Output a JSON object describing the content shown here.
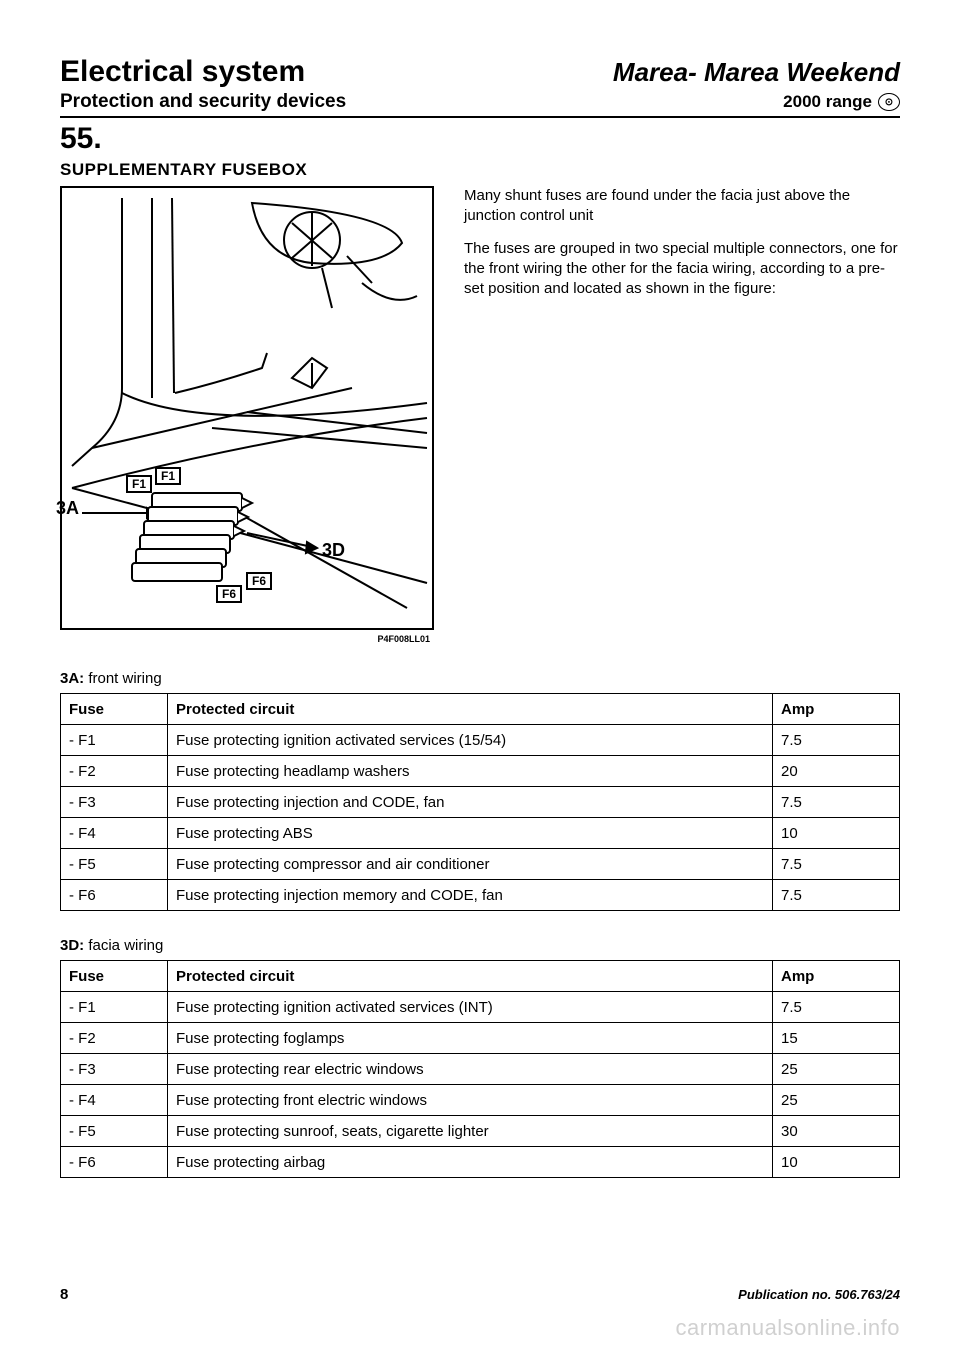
{
  "header": {
    "title_left": "Electrical system",
    "title_right": "Marea- Marea Weekend",
    "sub_left": "Protection and security devices",
    "sub_right": "2000 range"
  },
  "section": {
    "number": "55.",
    "title": "SUPPLEMENTARY FUSEBOX"
  },
  "figure": {
    "caption": "P4F008LL01",
    "label_3A": "3A",
    "label_3D": "3D",
    "label_F1": "F1",
    "label_F6": "F6"
  },
  "description": {
    "p1": "Many shunt fuses are found under the facia just above the junction control unit",
    "p2": "The fuses are grouped in two special multiple connectors, one for the front wiring  the other for the facia wiring, according  to  a pre-set position and located as shown in the figure:"
  },
  "table_3A": {
    "heading_bold": "3A:",
    "heading_suffix": " front wiring",
    "col_fuse": "Fuse",
    "col_circuit": "Protected circuit",
    "col_amp": "Amp",
    "rows": [
      {
        "fuse": "- F1",
        "circuit": "Fuse protecting ignition activated services (15/54)",
        "amp": "7.5"
      },
      {
        "fuse": "- F2",
        "circuit": "Fuse protecting headlamp washers",
        "amp": "20"
      },
      {
        "fuse": "- F3",
        "circuit": "Fuse protecting injection and CODE, fan",
        "amp": "7.5"
      },
      {
        "fuse": "- F4",
        "circuit": "Fuse protecting ABS",
        "amp": "10"
      },
      {
        "fuse": "- F5",
        "circuit": "Fuse protecting compressor and air conditioner",
        "amp": "7.5"
      },
      {
        "fuse": "- F6",
        "circuit": "Fuse protecting injection memory and CODE, fan",
        "amp": "7.5"
      }
    ]
  },
  "table_3D": {
    "heading_bold": "3D:",
    "heading_suffix": " facia wiring",
    "col_fuse": "Fuse",
    "col_circuit": "Protected circuit",
    "col_amp": "Amp",
    "rows": [
      {
        "fuse": "- F1",
        "circuit": "Fuse protecting ignition activated services (INT)",
        "amp": "7.5"
      },
      {
        "fuse": "- F2",
        "circuit": "Fuse protecting foglamps",
        "amp": "15"
      },
      {
        "fuse": "- F3",
        "circuit": "Fuse protecting rear electric windows",
        "amp": "25"
      },
      {
        "fuse": "- F4",
        "circuit": "Fuse protecting front electric windows",
        "amp": "25"
      },
      {
        "fuse": "- F5",
        "circuit": "Fuse protecting sunroof, seats, cigarette lighter",
        "amp": "30"
      },
      {
        "fuse": "- F6",
        "circuit": "Fuse protecting airbag",
        "amp": "10"
      }
    ]
  },
  "footer": {
    "page": "8",
    "pub": "Publication no. 506.763/24"
  },
  "watermark": "carmanualsonline.info"
}
